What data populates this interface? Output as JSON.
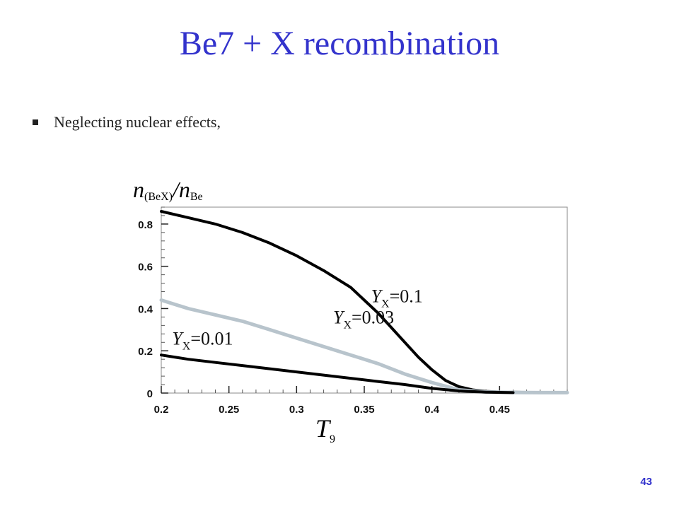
{
  "slide": {
    "title": "Be7 + X recombination",
    "bullet": "Neglecting nuclear effects,",
    "page_number": "43"
  },
  "chart_data": {
    "type": "line",
    "xlabel": "T9",
    "ylabel": "n(BeX)/nBe",
    "xlim": [
      0.2,
      0.5
    ],
    "ylim": [
      0,
      0.88
    ],
    "x_ticks": [
      0.2,
      0.25,
      0.3,
      0.35,
      0.4,
      0.45
    ],
    "x_tick_labels": [
      "0.2",
      "0.25",
      "0.3",
      "0.35",
      "0.4",
      "0.45"
    ],
    "y_ticks": [
      0,
      0.2,
      0.4,
      0.6,
      0.8
    ],
    "y_tick_labels": [
      "0",
      "0.2",
      "0.4",
      "0.6",
      "0.8"
    ],
    "grid": false,
    "series": [
      {
        "name": "YX=0.1",
        "color": "#000000",
        "x": [
          0.2,
          0.22,
          0.24,
          0.26,
          0.28,
          0.3,
          0.32,
          0.34,
          0.35,
          0.36,
          0.37,
          0.38,
          0.39,
          0.4,
          0.41,
          0.42,
          0.43,
          0.44,
          0.45,
          0.46,
          0.47
        ],
        "y": [
          0.86,
          0.83,
          0.8,
          0.76,
          0.71,
          0.65,
          0.58,
          0.5,
          0.44,
          0.38,
          0.31,
          0.24,
          0.17,
          0.11,
          0.06,
          0.03,
          0.015,
          0.008,
          0.005,
          0.004,
          0.003
        ]
      },
      {
        "name": "YX=0.03",
        "color": "#b8c4cc",
        "x": [
          0.2,
          0.22,
          0.24,
          0.26,
          0.28,
          0.3,
          0.32,
          0.34,
          0.36,
          0.38,
          0.4,
          0.42,
          0.44,
          0.46,
          0.48,
          0.5
        ],
        "y": [
          0.44,
          0.4,
          0.37,
          0.34,
          0.3,
          0.26,
          0.22,
          0.18,
          0.14,
          0.09,
          0.05,
          0.015,
          0.005,
          0.003,
          0.002,
          0.002
        ]
      },
      {
        "name": "YX=0.01",
        "color": "#000000",
        "x": [
          0.2,
          0.22,
          0.24,
          0.26,
          0.28,
          0.3,
          0.32,
          0.34,
          0.36,
          0.38,
          0.4,
          0.42,
          0.44,
          0.46
        ],
        "y": [
          0.18,
          0.16,
          0.145,
          0.13,
          0.115,
          0.1,
          0.085,
          0.07,
          0.055,
          0.04,
          0.022,
          0.01,
          0.004,
          0.002
        ]
      }
    ]
  }
}
